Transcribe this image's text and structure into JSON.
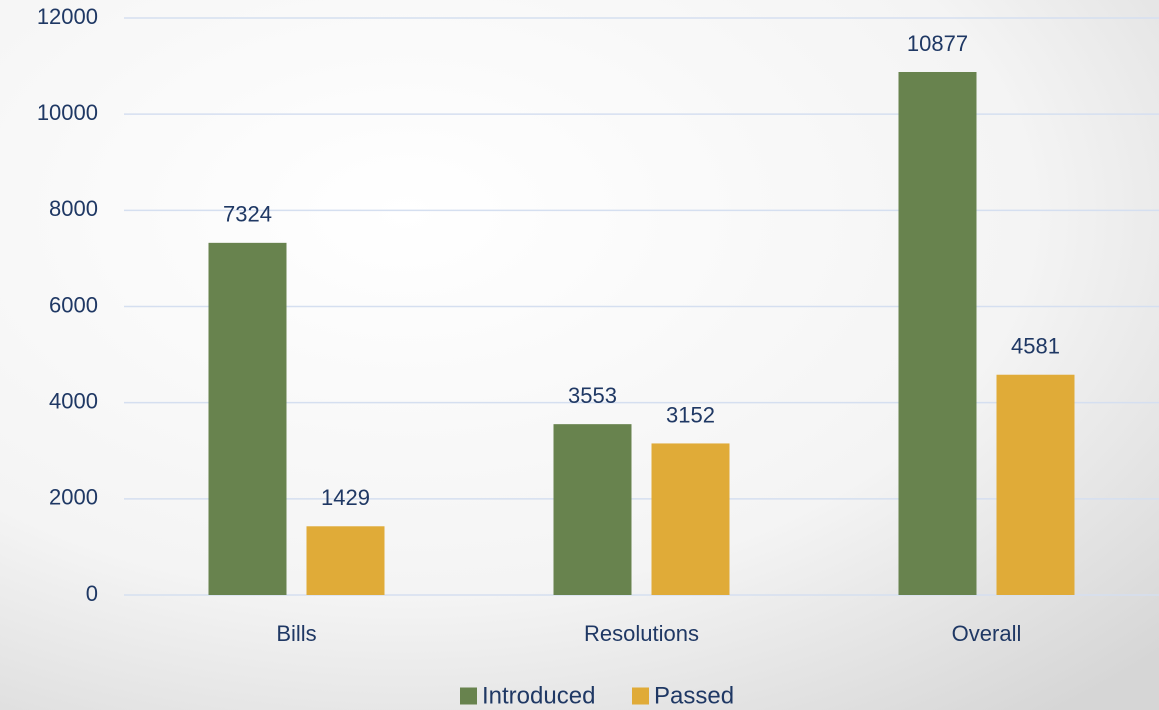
{
  "chart_data": {
    "type": "bar",
    "categories": [
      "Bills",
      "Resolutions",
      "Overall"
    ],
    "series": [
      {
        "name": "Introduced",
        "color": "#68834e",
        "values": [
          7324,
          3553,
          10877
        ]
      },
      {
        "name": "Passed",
        "color": "#e0ab38",
        "values": [
          1429,
          3152,
          4581
        ]
      }
    ],
    "ylim": [
      0,
      12000
    ],
    "yticks": [
      0,
      2000,
      4000,
      6000,
      8000,
      10000,
      12000
    ],
    "grid": true,
    "legend": "bottom"
  }
}
